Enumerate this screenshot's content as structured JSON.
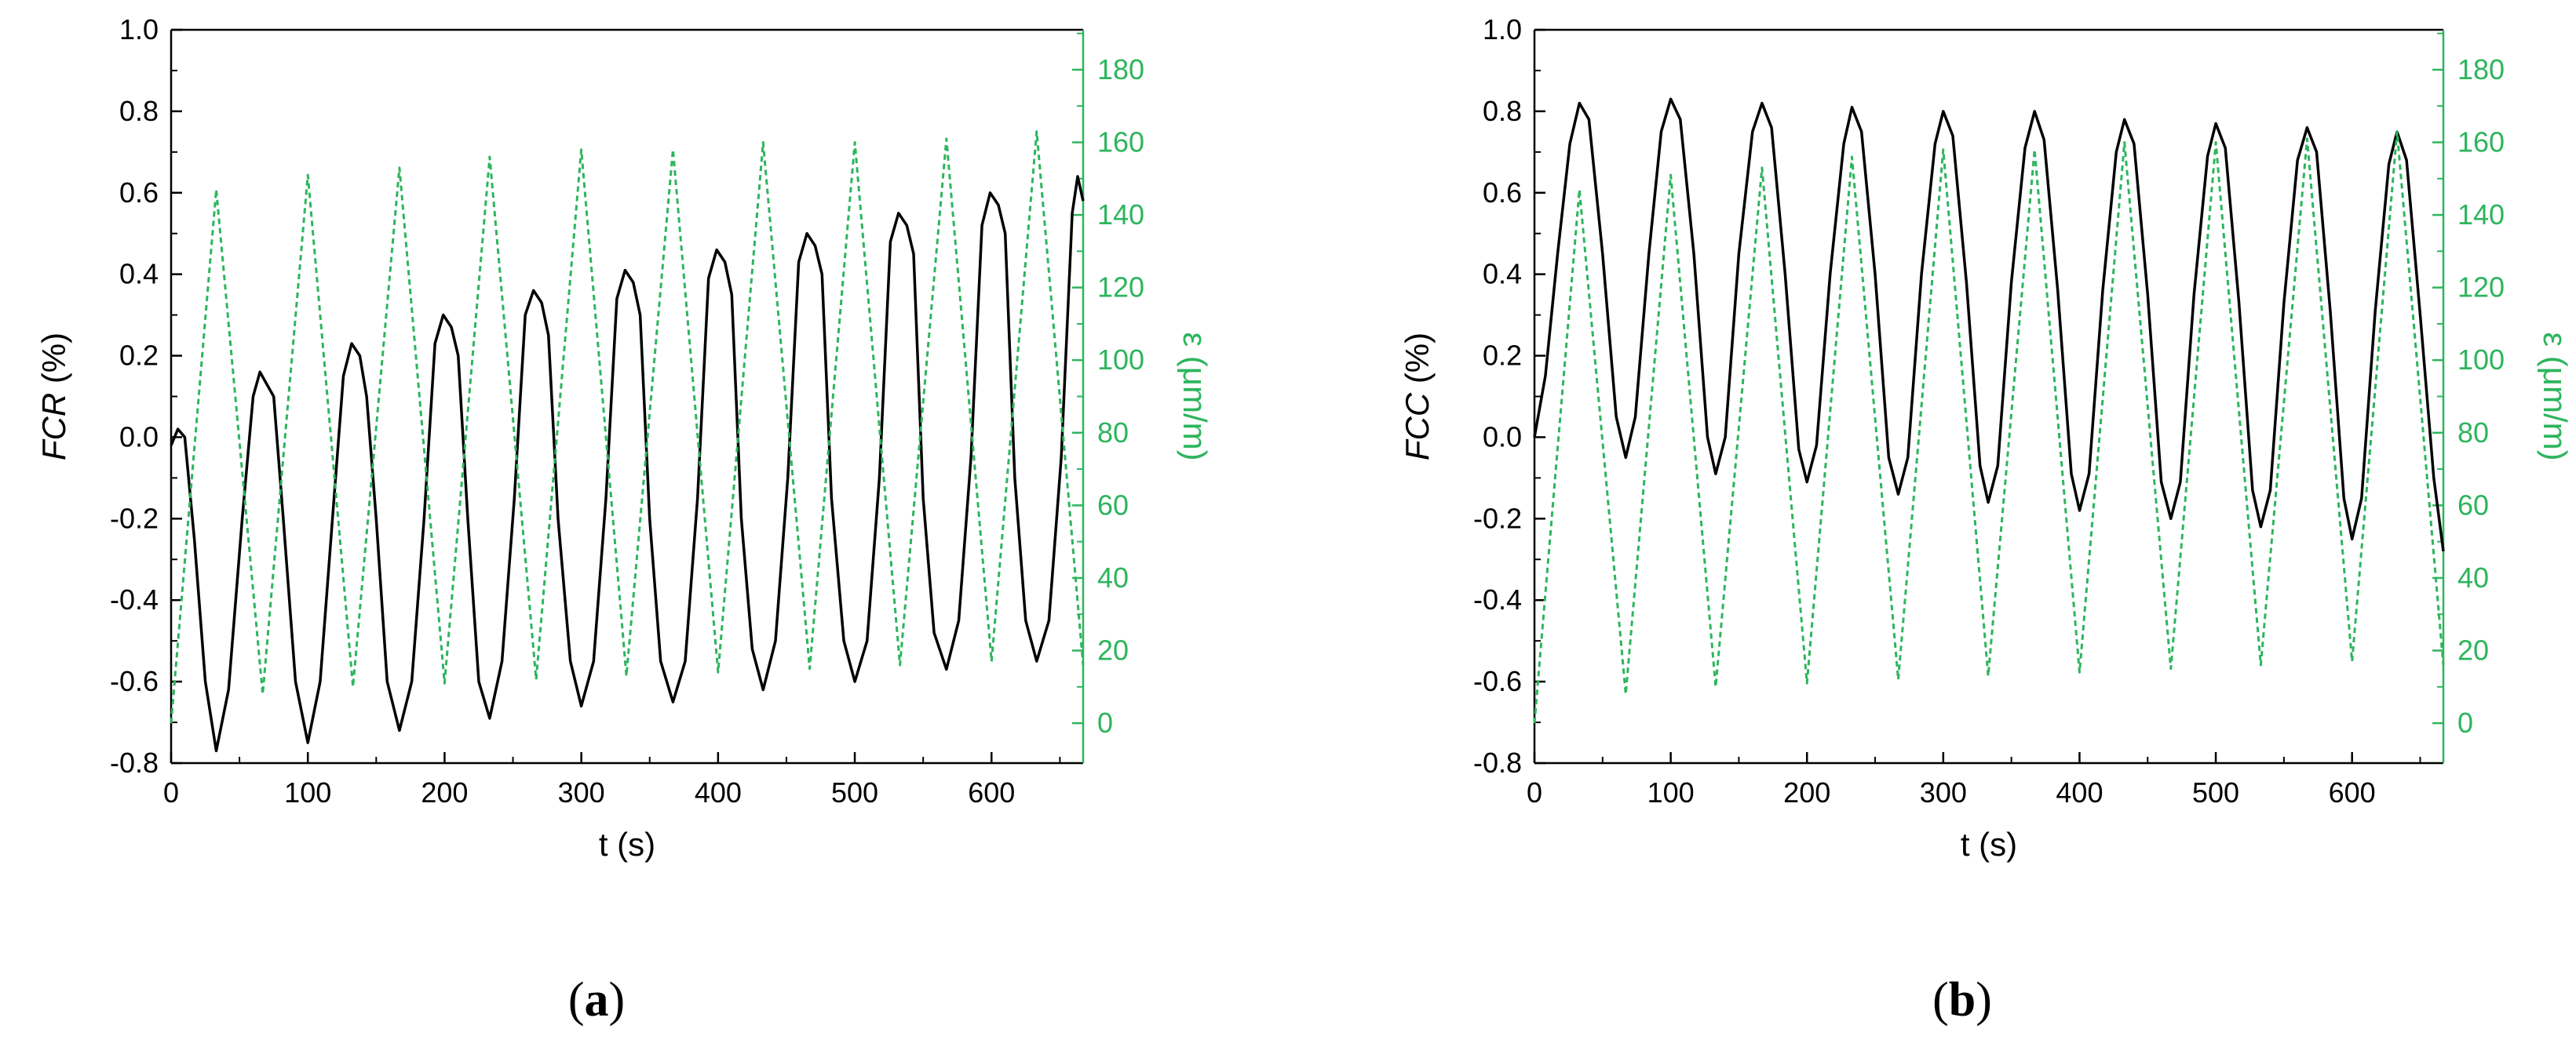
{
  "colors": {
    "primary": "#000000",
    "secondary": "#2db55d"
  },
  "chart_data": [
    {
      "type": "line",
      "panel_label": "(a)",
      "xlabel": "t (s)",
      "ylabel_italic": "FCR",
      "ylabel_rest": " (%)",
      "y2label": "ε (μm/m)",
      "xlim": [
        0,
        667
      ],
      "ylim": [
        -0.8,
        1.0
      ],
      "y2lim": [
        -11,
        191
      ],
      "xticks": [
        "0",
        "100",
        "200",
        "300",
        "400",
        "500",
        "600"
      ],
      "yticks": [
        "-0.8",
        "-0.6",
        "-0.4",
        "-0.2",
        "0.0",
        "0.2",
        "0.4",
        "0.6",
        "0.8",
        "1.0"
      ],
      "y2ticks": [
        "0",
        "20",
        "40",
        "60",
        "80",
        "100",
        "120",
        "140",
        "160",
        "180"
      ],
      "grid": false,
      "series": [
        {
          "axis": "left",
          "style": "solid",
          "points": [
            [
              0,
              -0.02
            ],
            [
              5,
              0.02
            ],
            [
              10,
              0.0
            ],
            [
              17,
              -0.25
            ],
            [
              25,
              -0.6
            ],
            [
              33,
              -0.77
            ],
            [
              42,
              -0.62
            ],
            [
              52,
              -0.2
            ],
            [
              60,
              0.1
            ],
            [
              65,
              0.16
            ],
            [
              70,
              0.13
            ],
            [
              75,
              0.1
            ],
            [
              82,
              -0.2
            ],
            [
              91,
              -0.6
            ],
            [
              100,
              -0.75
            ],
            [
              109,
              -0.6
            ],
            [
              118,
              -0.2
            ],
            [
              126,
              0.15
            ],
            [
              132,
              0.23
            ],
            [
              138,
              0.2
            ],
            [
              143,
              0.1
            ],
            [
              150,
              -0.2
            ],
            [
              158,
              -0.6
            ],
            [
              167,
              -0.72
            ],
            [
              176,
              -0.6
            ],
            [
              185,
              -0.2
            ],
            [
              193,
              0.23
            ],
            [
              199,
              0.3
            ],
            [
              205,
              0.27
            ],
            [
              210,
              0.2
            ],
            [
              217,
              -0.2
            ],
            [
              225,
              -0.6
            ],
            [
              233,
              -0.69
            ],
            [
              242,
              -0.55
            ],
            [
              251,
              -0.15
            ],
            [
              259,
              0.3
            ],
            [
              265,
              0.36
            ],
            [
              271,
              0.33
            ],
            [
              276,
              0.25
            ],
            [
              283,
              -0.2
            ],
            [
              292,
              -0.55
            ],
            [
              300,
              -0.66
            ],
            [
              309,
              -0.55
            ],
            [
              318,
              -0.15
            ],
            [
              326,
              0.34
            ],
            [
              332,
              0.41
            ],
            [
              338,
              0.38
            ],
            [
              343,
              0.3
            ],
            [
              350,
              -0.2
            ],
            [
              358,
              -0.55
            ],
            [
              367,
              -0.65
            ],
            [
              376,
              -0.55
            ],
            [
              385,
              -0.15
            ],
            [
              393,
              0.39
            ],
            [
              399,
              0.46
            ],
            [
              405,
              0.43
            ],
            [
              410,
              0.35
            ],
            [
              417,
              -0.2
            ],
            [
              425,
              -0.52
            ],
            [
              433,
              -0.62
            ],
            [
              442,
              -0.5
            ],
            [
              451,
              -0.1
            ],
            [
              459,
              0.43
            ],
            [
              465,
              0.5
            ],
            [
              471,
              0.47
            ],
            [
              476,
              0.4
            ],
            [
              483,
              -0.15
            ],
            [
              492,
              -0.5
            ],
            [
              500,
              -0.6
            ],
            [
              509,
              -0.5
            ],
            [
              518,
              -0.1
            ],
            [
              526,
              0.48
            ],
            [
              532,
              0.55
            ],
            [
              538,
              0.52
            ],
            [
              543,
              0.45
            ],
            [
              550,
              -0.15
            ],
            [
              558,
              -0.48
            ],
            [
              567,
              -0.57
            ],
            [
              576,
              -0.45
            ],
            [
              585,
              -0.05
            ],
            [
              593,
              0.52
            ],
            [
              599,
              0.6
            ],
            [
              605,
              0.57
            ],
            [
              610,
              0.5
            ],
            [
              617,
              -0.1
            ],
            [
              625,
              -0.45
            ],
            [
              633,
              -0.55
            ],
            [
              642,
              -0.45
            ],
            [
              651,
              -0.05
            ],
            [
              659,
              0.55
            ],
            [
              663,
              0.64
            ],
            [
              667,
              0.58
            ]
          ]
        },
        {
          "axis": "right",
          "style": "dashed",
          "points": [
            [
              0,
              0
            ],
            [
              33,
              147
            ],
            [
              67,
              8
            ],
            [
              100,
              151
            ],
            [
              133,
              10
            ],
            [
              167,
              153
            ],
            [
              200,
              11
            ],
            [
              233,
              156
            ],
            [
              267,
              12
            ],
            [
              300,
              158
            ],
            [
              333,
              13
            ],
            [
              367,
              158
            ],
            [
              400,
              14
            ],
            [
              433,
              160
            ],
            [
              467,
              15
            ],
            [
              500,
              160
            ],
            [
              533,
              16
            ],
            [
              567,
              161
            ],
            [
              600,
              17
            ],
            [
              633,
              163
            ],
            [
              667,
              16
            ]
          ]
        }
      ]
    },
    {
      "type": "line",
      "panel_label": "(b)",
      "xlabel": "t (s)",
      "ylabel_italic": "FCC",
      "ylabel_rest": " (%)",
      "y2label": "ε (μm/m)",
      "xlim": [
        0,
        667
      ],
      "ylim": [
        -0.8,
        1.0
      ],
      "y2lim": [
        -11,
        191
      ],
      "xticks": [
        "0",
        "100",
        "200",
        "300",
        "400",
        "500",
        "600"
      ],
      "yticks": [
        "-0.8",
        "-0.6",
        "-0.4",
        "-0.2",
        "0.0",
        "0.2",
        "0.4",
        "0.6",
        "0.8",
        "1.0"
      ],
      "y2ticks": [
        "0",
        "20",
        "40",
        "60",
        "80",
        "100",
        "120",
        "140",
        "160",
        "180"
      ],
      "grid": false,
      "series": [
        {
          "axis": "left",
          "style": "solid",
          "points": [
            [
              0,
              0.0
            ],
            [
              8,
              0.15
            ],
            [
              17,
              0.45
            ],
            [
              26,
              0.72
            ],
            [
              33,
              0.82
            ],
            [
              40,
              0.78
            ],
            [
              50,
              0.45
            ],
            [
              60,
              0.05
            ],
            [
              67,
              -0.05
            ],
            [
              74,
              0.05
            ],
            [
              84,
              0.45
            ],
            [
              93,
              0.75
            ],
            [
              100,
              0.83
            ],
            [
              107,
              0.78
            ],
            [
              117,
              0.45
            ],
            [
              127,
              0.0
            ],
            [
              133,
              -0.09
            ],
            [
              140,
              0.0
            ],
            [
              150,
              0.45
            ],
            [
              160,
              0.75
            ],
            [
              167,
              0.82
            ],
            [
              174,
              0.76
            ],
            [
              184,
              0.4
            ],
            [
              194,
              -0.03
            ],
            [
              200,
              -0.11
            ],
            [
              207,
              -0.02
            ],
            [
              217,
              0.4
            ],
            [
              227,
              0.72
            ],
            [
              233,
              0.81
            ],
            [
              240,
              0.75
            ],
            [
              250,
              0.4
            ],
            [
              260,
              -0.05
            ],
            [
              267,
              -0.14
            ],
            [
              274,
              -0.05
            ],
            [
              284,
              0.4
            ],
            [
              294,
              0.72
            ],
            [
              300,
              0.8
            ],
            [
              307,
              0.74
            ],
            [
              317,
              0.38
            ],
            [
              327,
              -0.07
            ],
            [
              333,
              -0.16
            ],
            [
              340,
              -0.07
            ],
            [
              350,
              0.38
            ],
            [
              360,
              0.71
            ],
            [
              367,
              0.8
            ],
            [
              374,
              0.73
            ],
            [
              384,
              0.36
            ],
            [
              394,
              -0.09
            ],
            [
              400,
              -0.18
            ],
            [
              407,
              -0.09
            ],
            [
              417,
              0.36
            ],
            [
              427,
              0.7
            ],
            [
              433,
              0.78
            ],
            [
              440,
              0.72
            ],
            [
              450,
              0.35
            ],
            [
              460,
              -0.11
            ],
            [
              467,
              -0.2
            ],
            [
              474,
              -0.11
            ],
            [
              484,
              0.35
            ],
            [
              494,
              0.69
            ],
            [
              500,
              0.77
            ],
            [
              507,
              0.71
            ],
            [
              517,
              0.33
            ],
            [
              527,
              -0.13
            ],
            [
              533,
              -0.22
            ],
            [
              540,
              -0.13
            ],
            [
              550,
              0.33
            ],
            [
              560,
              0.68
            ],
            [
              567,
              0.76
            ],
            [
              574,
              0.7
            ],
            [
              584,
              0.31
            ],
            [
              594,
              -0.15
            ],
            [
              600,
              -0.25
            ],
            [
              607,
              -0.15
            ],
            [
              617,
              0.31
            ],
            [
              627,
              0.67
            ],
            [
              633,
              0.75
            ],
            [
              640,
              0.68
            ],
            [
              650,
              0.3
            ],
            [
              660,
              -0.1
            ],
            [
              667,
              -0.28
            ]
          ]
        },
        {
          "axis": "right",
          "style": "dashed",
          "points": [
            [
              0,
              0
            ],
            [
              33,
              147
            ],
            [
              67,
              8
            ],
            [
              100,
              151
            ],
            [
              133,
              10
            ],
            [
              167,
              153
            ],
            [
              200,
              11
            ],
            [
              233,
              156
            ],
            [
              267,
              12
            ],
            [
              300,
              158
            ],
            [
              333,
              13
            ],
            [
              367,
              158
            ],
            [
              400,
              14
            ],
            [
              433,
              160
            ],
            [
              467,
              15
            ],
            [
              500,
              160
            ],
            [
              533,
              16
            ],
            [
              567,
              161
            ],
            [
              600,
              17
            ],
            [
              633,
              163
            ],
            [
              667,
              16
            ]
          ]
        }
      ]
    }
  ]
}
